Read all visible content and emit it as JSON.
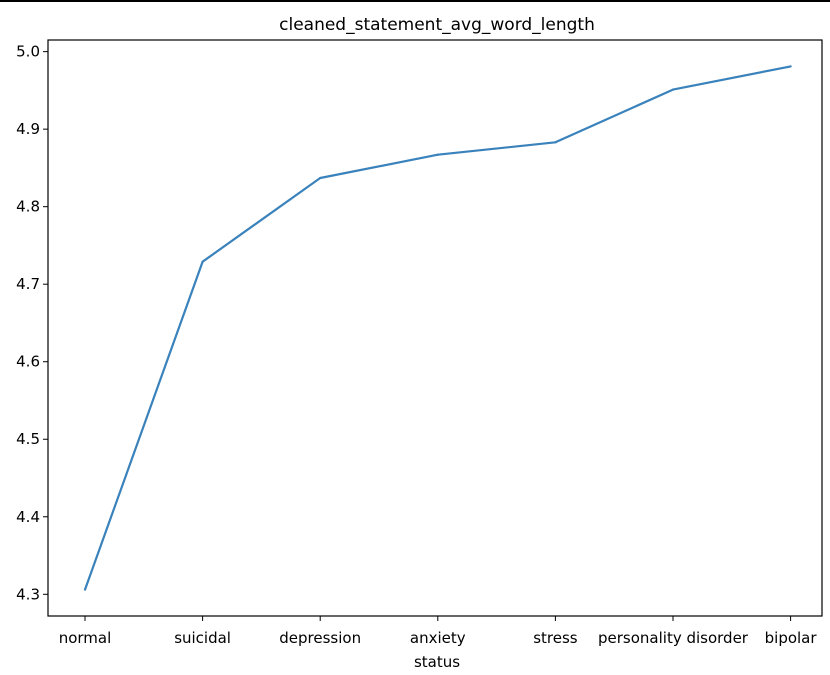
{
  "chart_data": {
    "type": "line",
    "title": "cleaned_statement_avg_word_length",
    "xlabel": "status",
    "ylabel": "",
    "categories": [
      "normal",
      "suicidal",
      "depression",
      "anxiety",
      "stress",
      "personality disorder",
      "bipolar"
    ],
    "series": [
      {
        "values": [
          4.306,
          4.729,
          4.837,
          4.867,
          4.883,
          4.951,
          4.981
        ]
      }
    ],
    "yticks": [
      "4.3",
      "4.4",
      "4.5",
      "4.6",
      "4.7",
      "4.8",
      "4.9",
      "5.0"
    ],
    "ylim": [
      4.272,
      5.015
    ],
    "grid": false,
    "line_color": "#3a82bb"
  }
}
